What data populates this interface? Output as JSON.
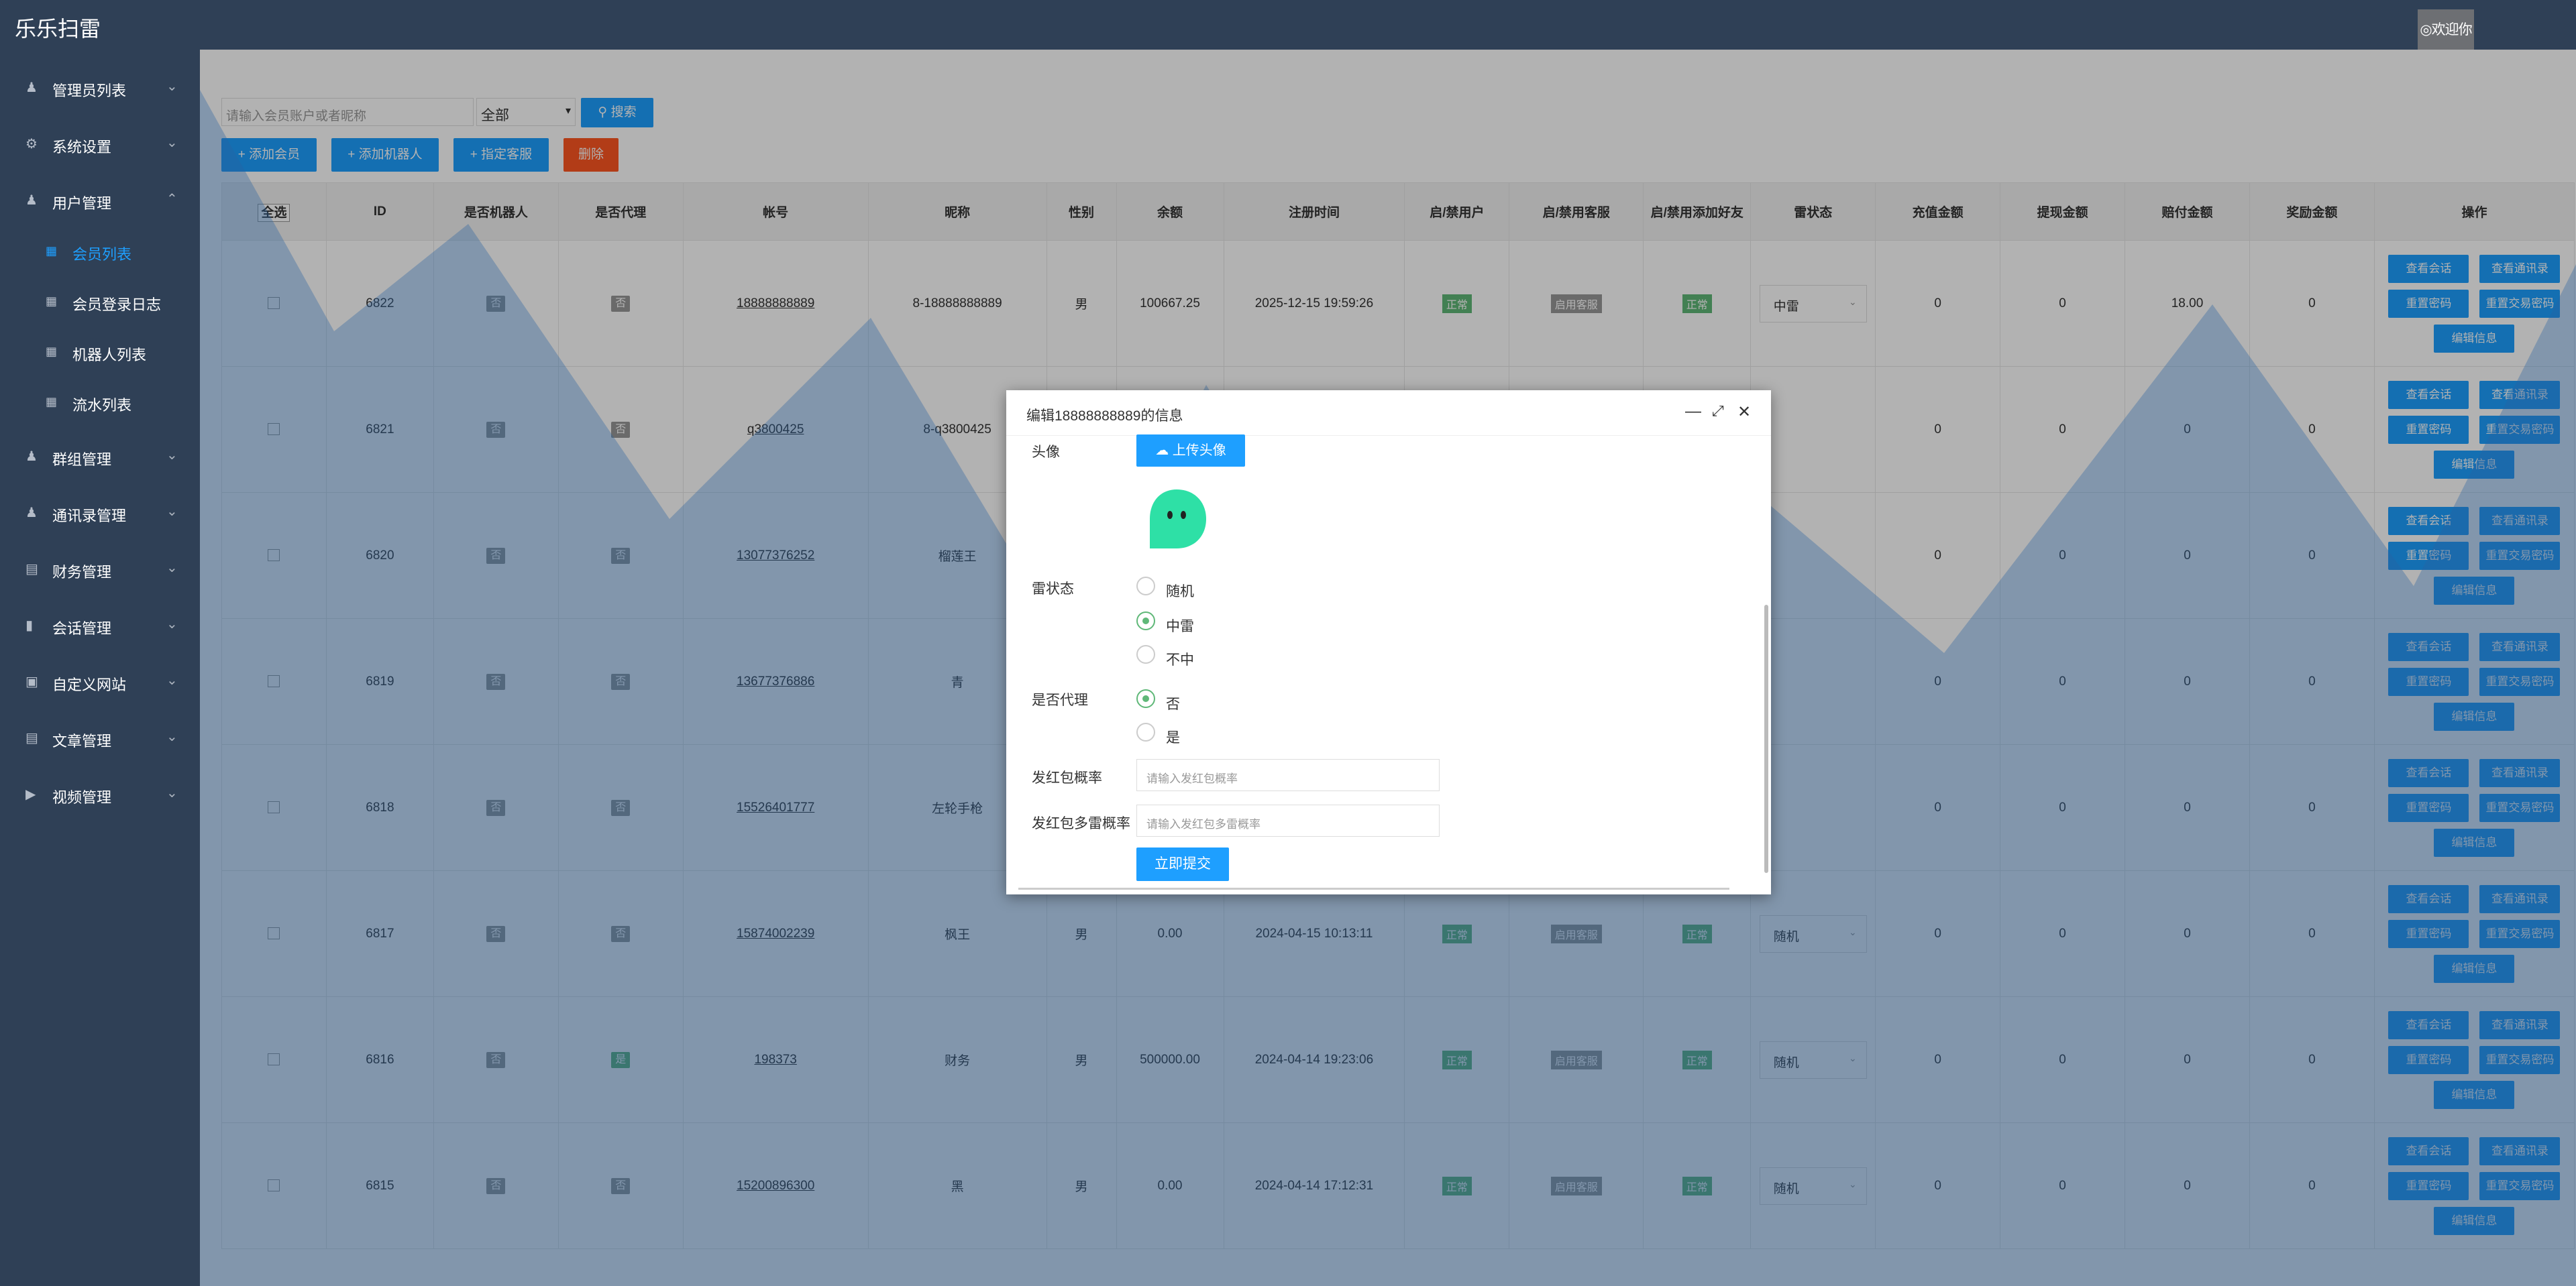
{
  "app": {
    "title": "乐乐扫雷",
    "welcome": "◎欢迎你"
  },
  "sidebar": {
    "items": [
      {
        "label": "管理员列表",
        "icon": "user-icon"
      },
      {
        "label": "系统设置",
        "icon": "gear-icon"
      },
      {
        "label": "用户管理",
        "icon": "user-icon"
      },
      {
        "label": "群组管理",
        "icon": "group-icon"
      },
      {
        "label": "通讯录管理",
        "icon": "user-icon"
      },
      {
        "label": "财务管理",
        "icon": "chart-icon"
      },
      {
        "label": "会话管理",
        "icon": "chat-icon"
      },
      {
        "label": "自定义网站",
        "icon": "monitor-icon"
      },
      {
        "label": "文章管理",
        "icon": "doc-icon"
      },
      {
        "label": "视频管理",
        "icon": "video-icon"
      }
    ],
    "subitems": [
      {
        "label": "会员列表",
        "icon": "grid-icon"
      },
      {
        "label": "会员登录日志",
        "icon": "grid-icon"
      },
      {
        "label": "机器人列表",
        "icon": "grid-icon"
      },
      {
        "label": "流水列表",
        "icon": "grid-icon"
      }
    ]
  },
  "toolbar": {
    "search_placeholder": "请输入会员账户或者昵称",
    "select_value": "全部",
    "search_label": "搜索",
    "add_member": "添加会员",
    "add_robot": "添加机器人",
    "assign_service": "指定客服",
    "delete": "删除"
  },
  "table": {
    "headers": [
      "全选",
      "ID",
      "是否机器人",
      "是否代理",
      "帐号",
      "昵称",
      "性别",
      "余额",
      "注册时间",
      "启/禁用户",
      "启/禁用客服",
      "启/禁用添加好友",
      "雷状态",
      "充值金额",
      "提现金额",
      "赔付金额",
      "奖励金额",
      "操作"
    ],
    "rows": [
      {
        "id": "6822",
        "robot": "否",
        "agent": "否",
        "account": "18888888889",
        "nickname": "8-18888888889",
        "gender": "男",
        "balance": "100667.25",
        "reg": "2025-12-15 19:59:26",
        "user": "正常",
        "service": "启用客服",
        "friend": "正常",
        "lei": "中雷",
        "recharge": "0",
        "withdraw": "0",
        "payout": "18.00",
        "reward": "0"
      },
      {
        "id": "6821",
        "robot": "否",
        "agent": "否",
        "account": "q3800425",
        "nickname": "8-q3800425",
        "gender": "",
        "balance": "",
        "reg": "",
        "user": "",
        "service": "",
        "friend": "",
        "lei": "",
        "recharge": "0",
        "withdraw": "0",
        "payout": "0",
        "reward": "0"
      },
      {
        "id": "6820",
        "robot": "否",
        "agent": "否",
        "account": "13077376252",
        "nickname": "榴莲王",
        "gender": "",
        "balance": "",
        "reg": "",
        "user": "",
        "service": "",
        "friend": "",
        "lei": "",
        "recharge": "0",
        "withdraw": "0",
        "payout": "0",
        "reward": "0"
      },
      {
        "id": "6819",
        "robot": "否",
        "agent": "否",
        "account": "13677376886",
        "nickname": "青",
        "gender": "",
        "balance": "",
        "reg": "",
        "user": "",
        "service": "",
        "friend": "",
        "lei": "",
        "recharge": "0",
        "withdraw": "0",
        "payout": "0",
        "reward": "0"
      },
      {
        "id": "6818",
        "robot": "否",
        "agent": "否",
        "account": "15526401777",
        "nickname": "左轮手枪",
        "gender": "",
        "balance": "",
        "reg": "",
        "user": "",
        "service": "",
        "friend": "",
        "lei": "",
        "recharge": "0",
        "withdraw": "0",
        "payout": "0",
        "reward": "0"
      },
      {
        "id": "6817",
        "robot": "否",
        "agent": "否",
        "account": "15874002239",
        "nickname": "枫王",
        "gender": "男",
        "balance": "0.00",
        "reg": "2024-04-15 10:13:11",
        "user": "正常",
        "service": "启用客服",
        "friend": "正常",
        "lei": "随机",
        "recharge": "0",
        "withdraw": "0",
        "payout": "0",
        "reward": "0"
      },
      {
        "id": "6816",
        "robot": "否",
        "agent": "是",
        "account": "198373",
        "nickname": "财务",
        "gender": "男",
        "balance": "500000.00",
        "reg": "2024-04-14 19:23:06",
        "user": "正常",
        "service": "启用客服",
        "friend": "正常",
        "lei": "随机",
        "recharge": "0",
        "withdraw": "0",
        "payout": "0",
        "reward": "0"
      },
      {
        "id": "6815",
        "robot": "否",
        "agent": "否",
        "account": "15200896300",
        "nickname": "黑",
        "gender": "男",
        "balance": "0.00",
        "reg": "2024-04-14 17:12:31",
        "user": "正常",
        "service": "启用客服",
        "friend": "正常",
        "lei": "随机",
        "recharge": "0",
        "withdraw": "0",
        "payout": "0",
        "reward": "0"
      }
    ],
    "ops": [
      "查看会话",
      "查看通讯录",
      "重置密码",
      "重置交易密码",
      "编辑信息"
    ]
  },
  "modal": {
    "title": "编辑18888888889的信息",
    "avatar_label": "头像",
    "upload_label": "上传头像",
    "lei_label": "雷状态",
    "lei_options": [
      "随机",
      "中雷",
      "不中"
    ],
    "agent_label": "是否代理",
    "agent_options": [
      "否",
      "是"
    ],
    "hongbao_label": "发红包概率",
    "hongbao_placeholder": "请输入发红包概率",
    "multilei_label": "发红包多雷概率",
    "multilei_placeholder": "请输入发红包多雷概率",
    "submit_label": "立即提交",
    "lei_selected": "中雷",
    "agent_selected": "否"
  },
  "colors": {
    "sidebar": "#2f4056",
    "primary": "#1e9fff",
    "success": "#5fb878",
    "danger": "#ff5722"
  }
}
